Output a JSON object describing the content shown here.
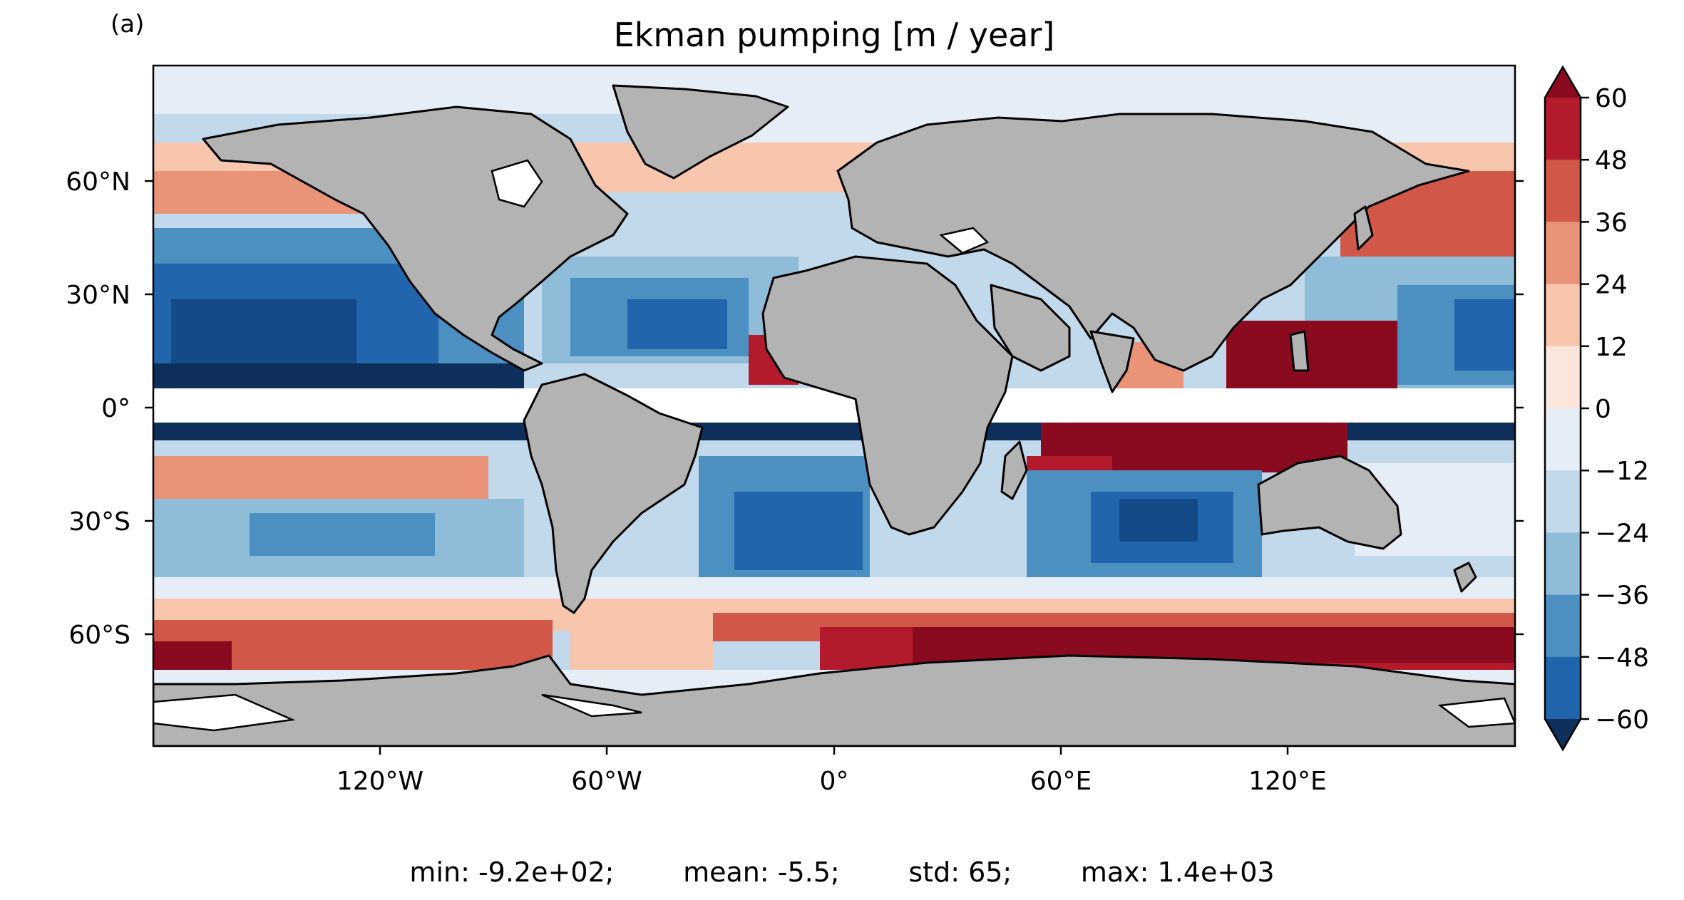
{
  "panel_label": "(a)",
  "title": "Ekman pumping [m / year]",
  "lat_ticks": [
    "60°N",
    "30°N",
    "0°",
    "30°S",
    "60°S"
  ],
  "lon_ticks": [
    "120°W",
    "60°W",
    "0°",
    "60°E",
    "120°E"
  ],
  "colorbar": {
    "ticks": [
      "60",
      "48",
      "36",
      "24",
      "12",
      "0",
      "−12",
      "−24",
      "−36",
      "−48",
      "−60"
    ],
    "colors": [
      "#8a0b20",
      "#b31b2c",
      "#d15749",
      "#e99478",
      "#f8c6ad",
      "#fbe6dc",
      "#e5eef6",
      "#c1d9ea",
      "#8ebcd9",
      "#4c90c1",
      "#2166ac",
      "#134a87",
      "#0d2f5a"
    ]
  },
  "stats": {
    "min": "min: -9.2e+02;",
    "mean": "mean: -5.5;",
    "std": "std: 65;",
    "max": "max: 1.4e+03"
  },
  "colors": {
    "land": "#b3b3b3",
    "coast": "#000000",
    "ice": "#ffffff"
  }
}
